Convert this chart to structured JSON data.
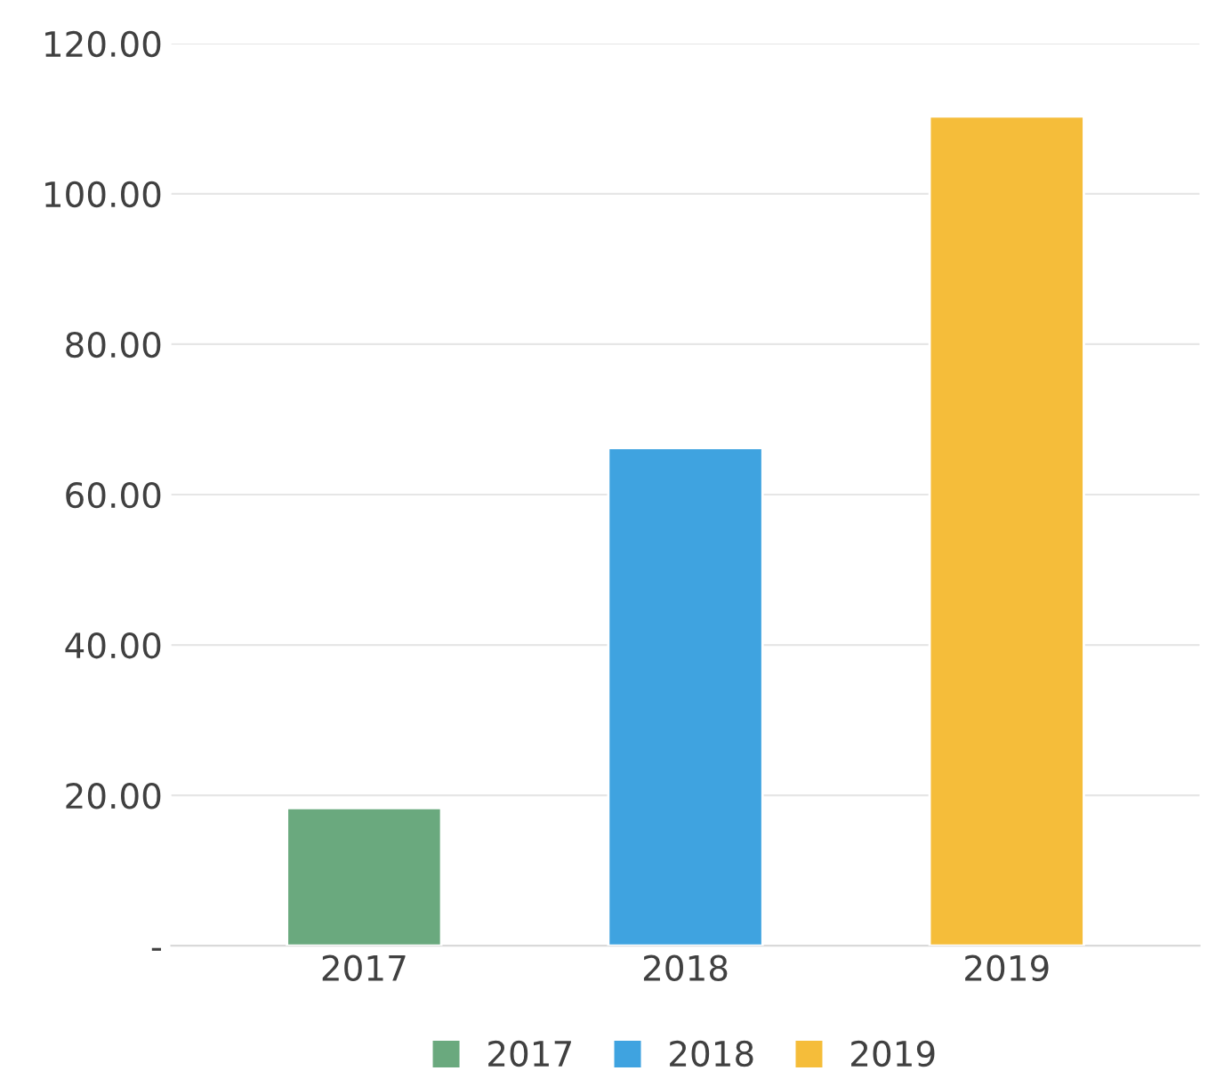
{
  "chart_data": {
    "type": "bar",
    "categories": [
      "2017",
      "2018",
      "2019"
    ],
    "series": [
      {
        "name": "2017",
        "color": "#6aa97e",
        "values": [
          18.3,
          null,
          null
        ]
      },
      {
        "name": "2018",
        "color": "#3fa3e0",
        "values": [
          null,
          66.2,
          null
        ]
      },
      {
        "name": "2019",
        "color": "#f5bd3a",
        "values": [
          null,
          null,
          110.3
        ]
      }
    ],
    "ylim": [
      0,
      120
    ],
    "yticks": [
      {
        "value": 0,
        "label": "-"
      },
      {
        "value": 20,
        "label": "20.00"
      },
      {
        "value": 40,
        "label": "40.00"
      },
      {
        "value": 60,
        "label": "60.00"
      },
      {
        "value": 80,
        "label": "80.00"
      },
      {
        "value": 100,
        "label": "100.00"
      },
      {
        "value": 120,
        "label": "120.00"
      }
    ],
    "grid": "y",
    "legend": "bottom"
  }
}
